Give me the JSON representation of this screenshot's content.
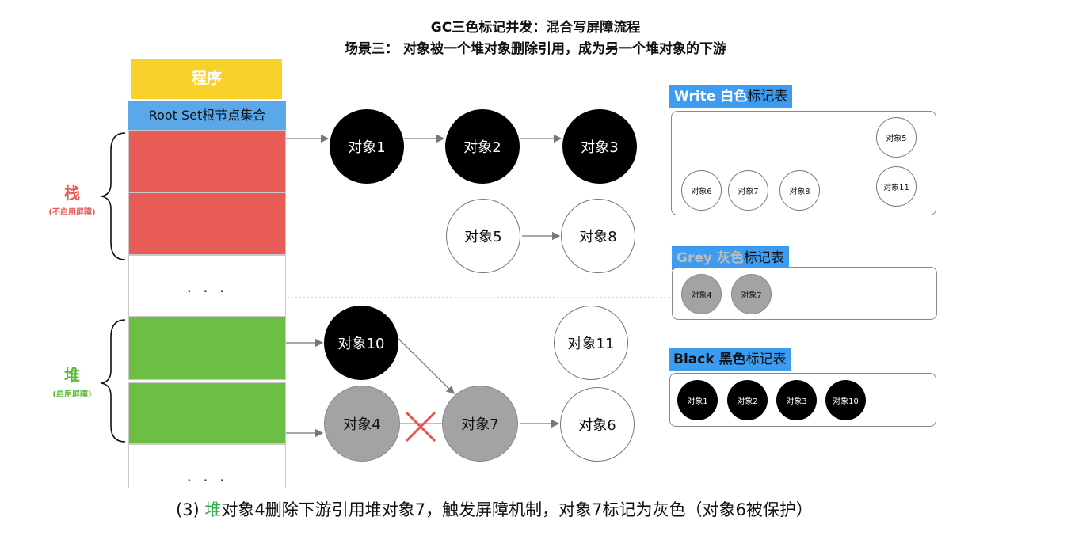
{
  "title": "GC三色标记并发：混合写屏障流程",
  "subtitle": "场景三： 对象被一个堆对象删除引用，成为另一个堆对象的下游",
  "program_label": "程序",
  "rootset_label": "Root Set根节点集合",
  "stack_label": "栈",
  "stack_note": "(不启用屏障)",
  "heap_label": "堆",
  "heap_note": "(启用屏障)",
  "ellipsis": "· · ·",
  "nodes": {
    "obj1": "对象1",
    "obj2": "对象2",
    "obj3": "对象3",
    "obj5": "对象5",
    "obj8": "对象8",
    "obj10": "对象10",
    "obj11": "对象11",
    "obj4": "对象4",
    "obj7": "对象7",
    "obj6": "对象6"
  },
  "tables": {
    "white": {
      "title_a": "Write",
      "title_b": "白色",
      "title_c": "标记表",
      "items": [
        "对象5",
        "对象6",
        "对象7",
        "对象8",
        "对象11"
      ]
    },
    "grey": {
      "title_a": "Grey",
      "title_b": "灰色",
      "title_c": "标记表",
      "items": [
        "对象4",
        "对象7"
      ]
    },
    "black": {
      "title_a": "Black",
      "title_b": "黑色",
      "title_c": "标记表",
      "items": [
        "对象1",
        "对象2",
        "对象3",
        "对象10"
      ]
    }
  },
  "caption": {
    "prefix": "(3) ",
    "highlight": "堆",
    "rest": "对象4删除下游引用堆对象7，触发屏障机制，对象7标记为灰色（对象6被保护）"
  },
  "colors": {
    "program": "#f8d12b",
    "rootset": "#5aa7ea",
    "stack_red": "#e85c57",
    "heap_green": "#6cbf44",
    "table_head": "#3d9bf0",
    "grey_text": "#b8b8b8",
    "cross": "#e8524a"
  }
}
